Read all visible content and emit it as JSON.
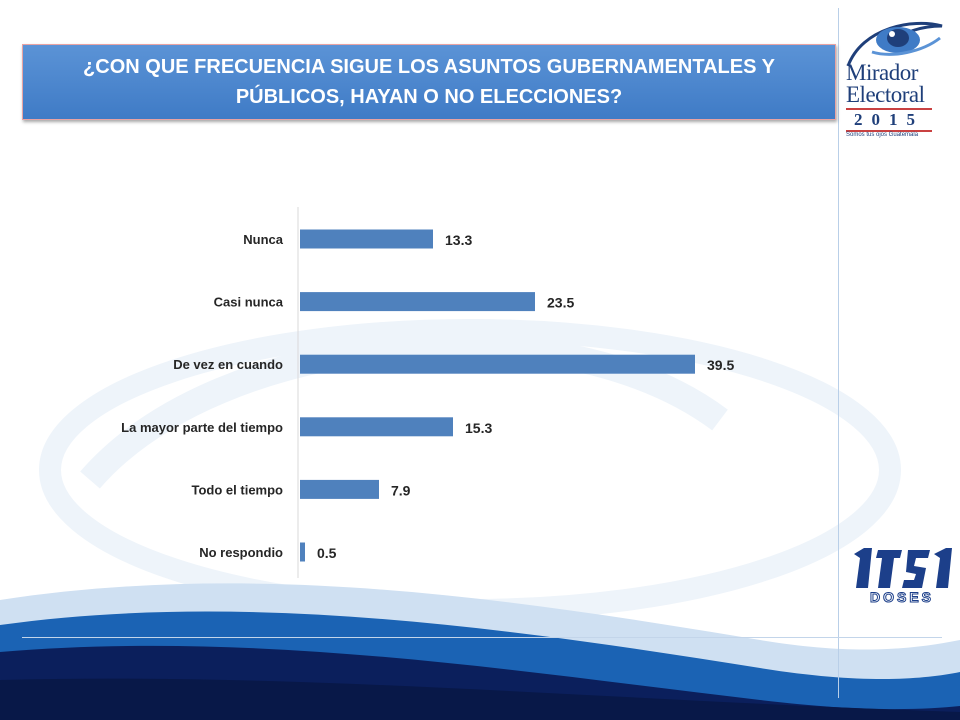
{
  "title_line1": "¿CON QUE FRECUENCIA SIGUE LOS ASUNTOS GUBERNAMENTALES Y",
  "title_line2": "PÚBLICOS, HAYAN O NO ELECCIONES?",
  "colors": {
    "bar": "#4f81bd",
    "title_bg": "#4a86cf",
    "wave_dark": "#0b1f5c",
    "wave_mid": "#1b63b4",
    "wave_light": "#dce9f6"
  },
  "logos": {
    "mirador_line1": "Mirador",
    "mirador_line2": "Electoral",
    "mirador_year": "2015",
    "mirador_tagline": "Somos tus ojos Guatemala",
    "doses_text": "DOSES"
  },
  "chart_data": {
    "type": "bar",
    "orientation": "horizontal",
    "title": "",
    "xlabel": "",
    "ylabel": "",
    "categories": [
      "Nunca",
      "Casi nunca",
      "De vez en cuando",
      "La mayor parte del tiempo",
      "Todo el tiempo",
      "No respondio"
    ],
    "values": [
      13.3,
      23.5,
      39.5,
      15.3,
      7.9,
      0.5
    ],
    "value_labels": [
      "13.3",
      "23.5",
      "39.5",
      "15.3",
      "7.9",
      "0.5"
    ],
    "xlim": [
      0,
      40
    ],
    "grid": false,
    "legend": "none"
  }
}
